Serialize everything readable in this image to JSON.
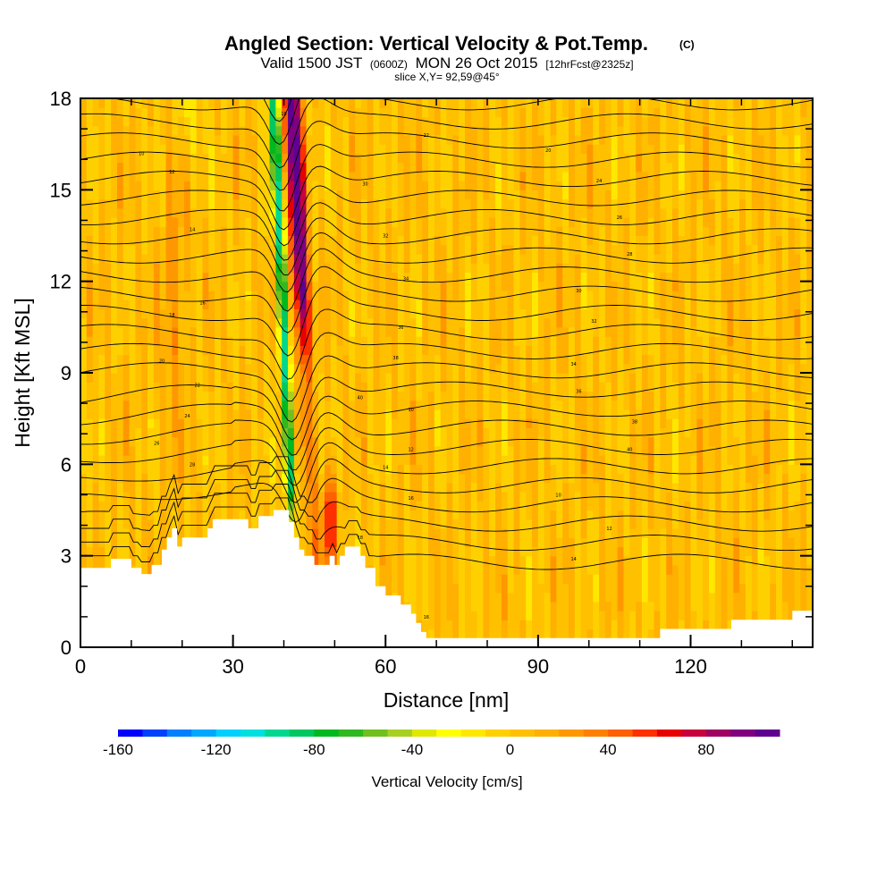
{
  "title": "Angled Section: Vertical Velocity & Pot.Temp.",
  "title_units": "(C)",
  "subtitle": {
    "valid": "Valid 1500 JST",
    "zulu": "(0600Z)",
    "date": "MON 26 Oct 2015",
    "forecast": "[12hrFcst@2325z]",
    "slice": "slice X,Y= 92,59@45°"
  },
  "chart_data": {
    "type": "heatmap",
    "xlabel": "Distance [nm]",
    "ylabel": "Height [Kft MSL]",
    "xlim": [
      0,
      144
    ],
    "ylim": [
      0,
      18
    ],
    "x_ticks": [
      "0",
      "30",
      "60",
      "90",
      "120"
    ],
    "x_tick_values": [
      0,
      30,
      60,
      90,
      120
    ],
    "y_ticks": [
      "0",
      "3",
      "6",
      "9",
      "12",
      "15",
      "18"
    ],
    "y_tick_values": [
      0,
      3,
      6,
      9,
      12,
      15,
      18
    ],
    "colorbar": {
      "title": "Vertical Velocity [cm/s]",
      "range": [
        -160,
        110
      ],
      "tick_labels": [
        "-160",
        "-120",
        "-80",
        "-40",
        "0",
        "40",
        "80"
      ],
      "tick_values": [
        -160,
        -120,
        -80,
        -40,
        0,
        40,
        80
      ],
      "colors": [
        "#0000ff",
        "#0040ff",
        "#0080ff",
        "#00a8ff",
        "#00d0ff",
        "#00e0e0",
        "#00d890",
        "#00c860",
        "#00b820",
        "#30b820",
        "#70c020",
        "#a8d020",
        "#e0e800",
        "#ffff00",
        "#ffe800",
        "#ffd000",
        "#ffc000",
        "#ffb000",
        "#ff9800",
        "#ff8000",
        "#ff6000",
        "#ff3000",
        "#e80000",
        "#c8003c",
        "#a00060",
        "#800080",
        "#600090"
      ]
    },
    "terrain_kft": [
      [
        0,
        2.6
      ],
      [
        6,
        2.6
      ],
      [
        6,
        2.9
      ],
      [
        10,
        2.9
      ],
      [
        10,
        2.6
      ],
      [
        12,
        2.6
      ],
      [
        12,
        2.4
      ],
      [
        14,
        2.4
      ],
      [
        14,
        2.7
      ],
      [
        16,
        2.7
      ],
      [
        16,
        3.2
      ],
      [
        17,
        3.2
      ],
      [
        17,
        3.6
      ],
      [
        18,
        3.6
      ],
      [
        18,
        3.9
      ],
      [
        19,
        3.9
      ],
      [
        19,
        3.3
      ],
      [
        20,
        3.3
      ],
      [
        20,
        3.6
      ],
      [
        25,
        3.6
      ],
      [
        25,
        3.9
      ],
      [
        26,
        3.9
      ],
      [
        26,
        4.2
      ],
      [
        33,
        4.2
      ],
      [
        33,
        3.9
      ],
      [
        35,
        3.9
      ],
      [
        35,
        4.3
      ],
      [
        38,
        4.3
      ],
      [
        38,
        4.5
      ],
      [
        41,
        4.5
      ],
      [
        41,
        4.1
      ],
      [
        42,
        4.1
      ],
      [
        42,
        3.6
      ],
      [
        43,
        3.6
      ],
      [
        43,
        3.2
      ],
      [
        44,
        3.2
      ],
      [
        44,
        3.0
      ],
      [
        46,
        3.0
      ],
      [
        46,
        2.7
      ],
      [
        49,
        2.7
      ],
      [
        49,
        3.0
      ],
      [
        50,
        3.0
      ],
      [
        50,
        2.7
      ],
      [
        51,
        2.7
      ],
      [
        51,
        3.0
      ],
      [
        52,
        3.0
      ],
      [
        52,
        3.3
      ],
      [
        55,
        3.3
      ],
      [
        55,
        3.0
      ],
      [
        56,
        3.0
      ],
      [
        56,
        2.6
      ],
      [
        58,
        2.6
      ],
      [
        58,
        2.0
      ],
      [
        60,
        2.0
      ],
      [
        60,
        1.7
      ],
      [
        63,
        1.7
      ],
      [
        63,
        1.4
      ],
      [
        65,
        1.4
      ],
      [
        65,
        1.1
      ],
      [
        66,
        1.1
      ],
      [
        66,
        0.8
      ],
      [
        67,
        0.8
      ],
      [
        67,
        0.5
      ],
      [
        68,
        0.5
      ],
      [
        68,
        0.3
      ],
      [
        114,
        0.3
      ],
      [
        114,
        0.6
      ],
      [
        128,
        0.6
      ],
      [
        128,
        0.9
      ],
      [
        140,
        0.9
      ],
      [
        140,
        1.2
      ],
      [
        144,
        1.2
      ]
    ],
    "contour_values_K": [
      290,
      292,
      294,
      296,
      298,
      300,
      302,
      304,
      306,
      308,
      310,
      312,
      314,
      316,
      318,
      320,
      322,
      324,
      326,
      328,
      330,
      332,
      334,
      336,
      338,
      340
    ],
    "contour_label_text": [
      "10",
      "12",
      "14",
      "16",
      "18",
      "20",
      "22",
      "24",
      "26",
      "28",
      "30",
      "32",
      "34",
      "36",
      "38",
      "40"
    ]
  }
}
